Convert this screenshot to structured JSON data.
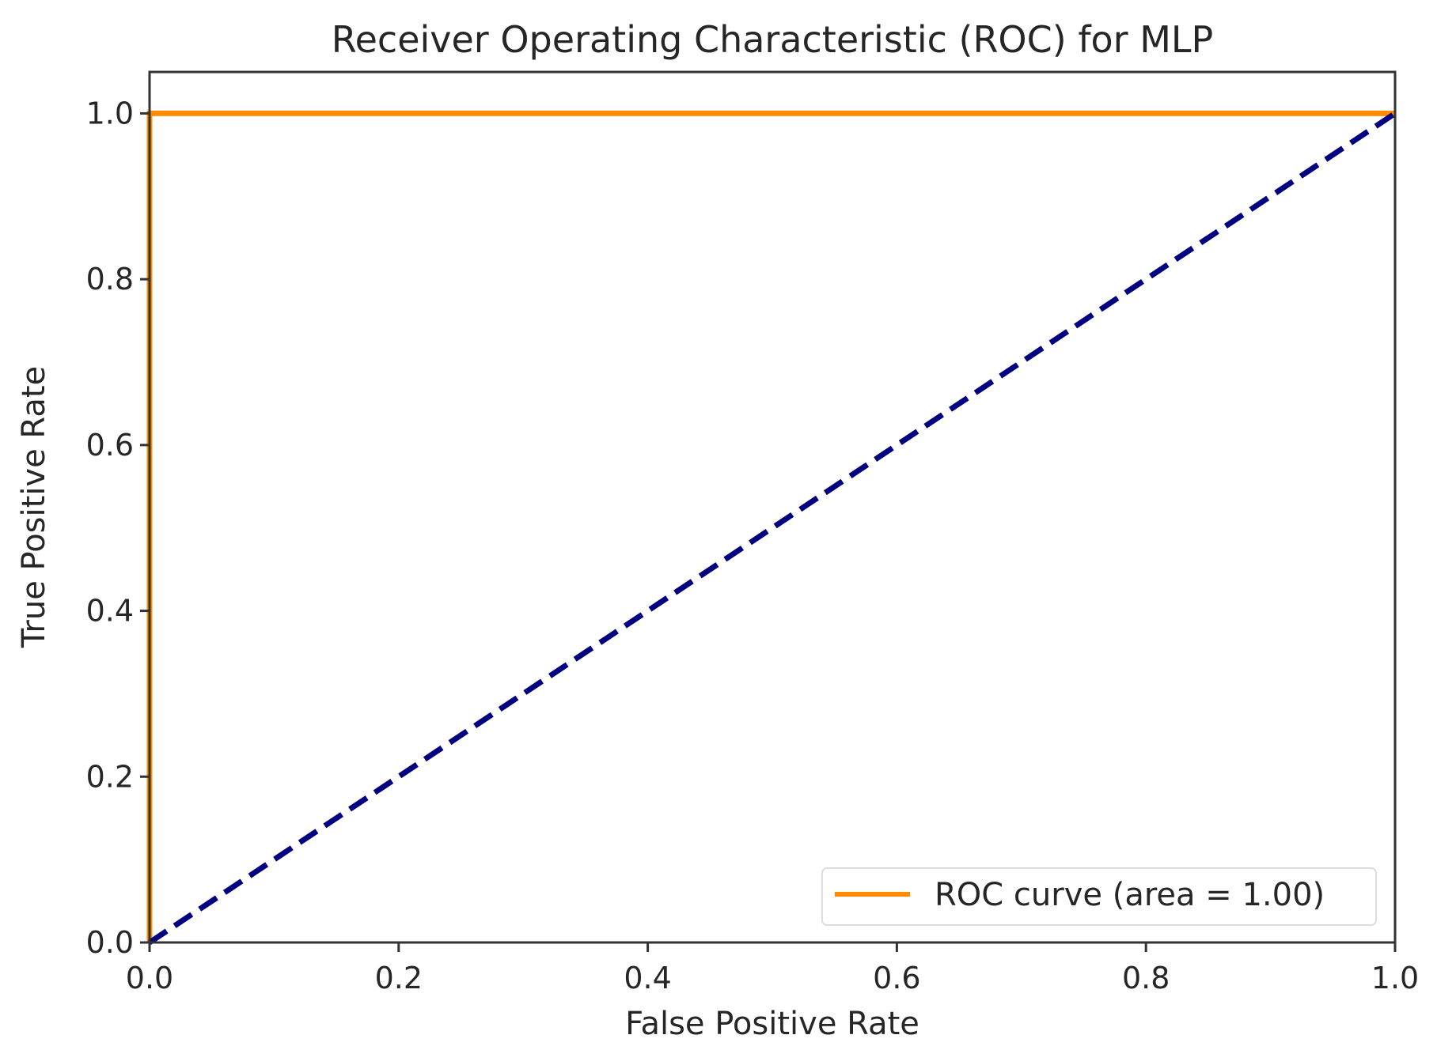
{
  "chart_data": {
    "type": "line",
    "title": "Receiver Operating Characteristic (ROC) for MLP",
    "xlabel": "False Positive Rate",
    "ylabel": "True Positive Rate",
    "xlim": [
      0.0,
      1.0
    ],
    "ylim": [
      0.0,
      1.05
    ],
    "xticks": [
      "0.0",
      "0.2",
      "0.4",
      "0.6",
      "0.8",
      "1.0"
    ],
    "yticks": [
      "0.0",
      "0.2",
      "0.4",
      "0.6",
      "0.8",
      "1.0"
    ],
    "grid": false,
    "legend_position": "lower-right",
    "series": [
      {
        "name": "ROC curve (area = 1.00)",
        "x": [
          0.0,
          0.0,
          1.0
        ],
        "y": [
          0.0,
          1.0,
          1.0
        ],
        "color": "#ff8c00",
        "style": "solid"
      },
      {
        "x": [
          0.0,
          1.0
        ],
        "y": [
          0.0,
          1.0
        ],
        "color": "#000080",
        "style": "dashed"
      }
    ]
  }
}
